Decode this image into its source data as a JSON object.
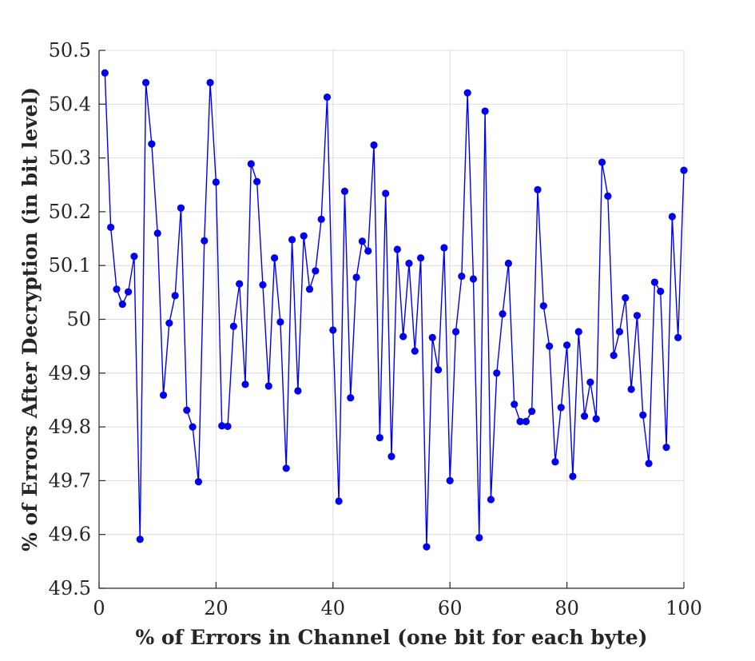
{
  "chart_data": {
    "type": "line",
    "title": "",
    "xlabel": "% of Errors in Channel (one bit for each byte)",
    "ylabel": "% of Errors After Decryption (in bit level)",
    "xlim": [
      0,
      100
    ],
    "ylim": [
      49.5,
      50.5
    ],
    "xticks": [
      "0",
      "20",
      "40",
      "60",
      "80",
      "100"
    ],
    "yticks": [
      "49.5",
      "49.6",
      "49.7",
      "49.8",
      "49.9",
      "50",
      "50.1",
      "50.2",
      "50.3",
      "50.4",
      "50.5"
    ],
    "grid": true,
    "marker": "filled-circle",
    "color": "#0000ee",
    "series": [
      {
        "x": [
          1,
          2,
          3,
          4,
          5,
          6,
          7,
          8,
          9,
          10,
          11,
          12,
          13,
          14,
          15,
          16,
          17,
          18,
          19,
          20,
          21,
          22,
          23,
          24,
          25,
          26,
          27,
          28,
          29,
          30,
          31,
          32,
          33,
          34,
          35,
          36,
          37,
          38,
          39,
          40,
          41,
          42,
          43,
          44,
          45,
          46,
          47,
          48,
          49,
          50,
          51,
          52,
          53,
          54,
          55,
          56,
          57,
          58,
          59,
          60,
          61,
          62,
          63,
          64,
          65,
          66,
          67,
          68,
          69,
          70,
          71,
          72,
          73,
          74,
          75,
          76,
          77,
          78,
          79,
          80,
          81,
          82,
          83,
          84,
          85,
          86,
          87,
          88,
          89,
          90,
          91,
          92,
          93,
          94,
          95,
          96,
          97,
          98,
          99,
          100
        ],
        "values": [
          50.458,
          50.171,
          50.056,
          50.028,
          50.051,
          50.117,
          49.591,
          50.44,
          50.326,
          50.16,
          49.859,
          49.993,
          50.044,
          50.207,
          49.831,
          49.8,
          49.698,
          50.146,
          50.44,
          50.255,
          49.802,
          49.801,
          49.987,
          50.066,
          49.879,
          50.289,
          50.256,
          50.064,
          49.876,
          50.114,
          49.995,
          49.723,
          50.148,
          49.867,
          50.155,
          50.056,
          50.09,
          50.186,
          50.413,
          49.98,
          49.662,
          50.238,
          49.854,
          50.078,
          50.145,
          50.127,
          50.324,
          49.78,
          50.234,
          49.745,
          50.13,
          49.968,
          50.104,
          49.941,
          50.114,
          49.577,
          49.966,
          49.906,
          50.133,
          49.7,
          49.977,
          50.08,
          50.421,
          50.075,
          49.594,
          50.387,
          49.665,
          49.9,
          50.01,
          50.104,
          49.842,
          49.81,
          49.81,
          49.829,
          50.241,
          50.025,
          49.95,
          49.735,
          49.836,
          49.952,
          49.708,
          49.977,
          49.82,
          49.883,
          49.815,
          50.292,
          50.229,
          49.933,
          49.977,
          50.04,
          49.87,
          50.007,
          49.822,
          49.732,
          50.069,
          50.052,
          49.762,
          50.191,
          49.966,
          50.277
        ]
      }
    ]
  }
}
